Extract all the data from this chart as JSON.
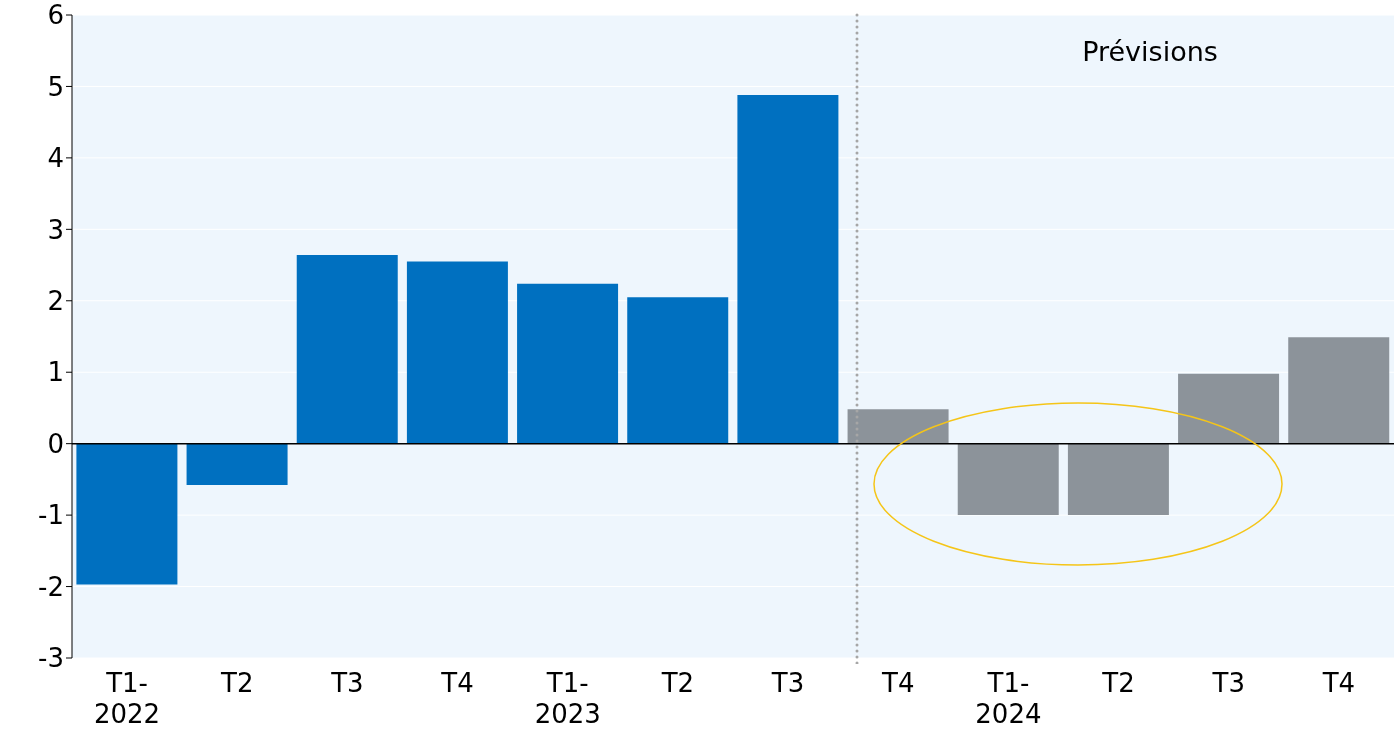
{
  "chart_data": {
    "type": "bar",
    "categories": [
      "T1-\n2022",
      "T2",
      "T3",
      "T4",
      "T1-\n2023",
      "T2",
      "T3",
      "T4",
      "T1-\n2024",
      "T2",
      "T3",
      "T4"
    ],
    "values": [
      -1.97,
      -0.58,
      2.64,
      2.55,
      2.24,
      2.05,
      4.88,
      0.48,
      -1.0,
      -1.0,
      0.98,
      1.49
    ],
    "colors": [
      "#0070c0",
      "#0070c0",
      "#0070c0",
      "#0070c0",
      "#0070c0",
      "#0070c0",
      "#0070c0",
      "#8c939a",
      "#8c939a",
      "#8c939a",
      "#8c939a",
      "#8c939a"
    ],
    "ylim": [
      -3,
      6
    ],
    "yticks": [
      -3,
      -2,
      -1,
      0,
      1,
      2,
      3,
      4,
      5,
      6
    ],
    "grid": "y",
    "annotations": [
      "Prévisions"
    ]
  }
}
